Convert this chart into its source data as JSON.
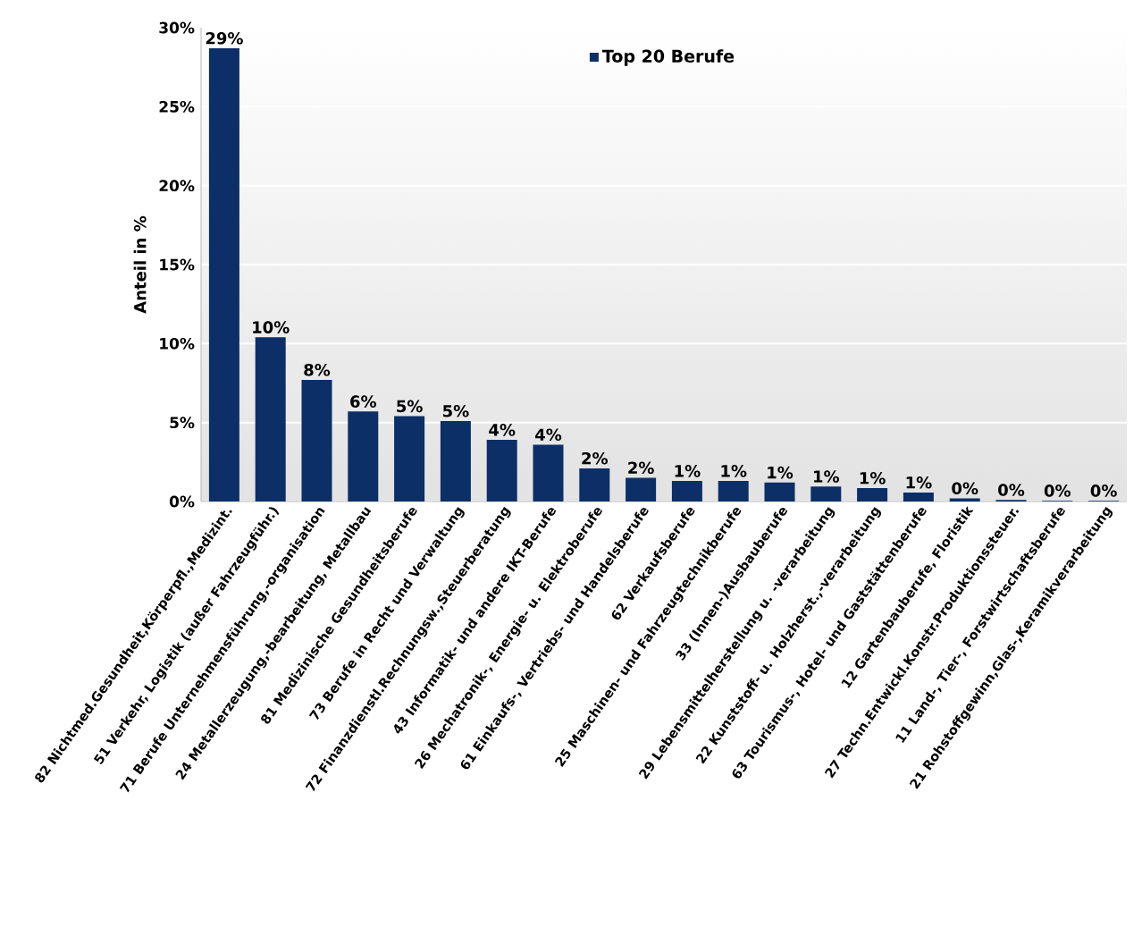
{
  "chart_data": {
    "type": "bar",
    "ylabel": "Anteil in %",
    "categories": [
      "82 Nichtmed.Gesundheit,Körperpfl.,Medizint.",
      "51 Verkehr, Logistik (außer Fahrzeugführ.)",
      "71 Berufe Unternehmensführung,-organisation",
      "24 Metallerzeugung,-bearbeitung, Metallbau",
      "81 Medizinische Gesundheitsberufe",
      "73 Berufe in Recht und Verwaltung",
      "72 Finanzdienstl.Rechnungsw.,Steuerberatung",
      "43 Informatik- und andere IKT-Berufe",
      "26 Mechatronik-, Energie- u. Elektroberufe",
      "61 Einkaufs-, Vertriebs- und Handelsberufe",
      "62 Verkaufsberufe",
      "25 Maschinen- und Fahrzeugtechnikberufe",
      "33 (Innen-)Ausbauberufe",
      "29 Lebensmittelherstellung u. -verarbeitung",
      "22 Kunststoff- u. Holzherst.,-verarbeitung",
      "63 Tourismus-, Hotel- und Gaststättenberufe",
      "12 Gartenbauberufe, Floristik",
      "27 Techn.Entwickl.Konstr.Produktionssteuer.",
      "11 Land-, Tier-, Forstwirtschaftsberufe",
      "21 Rohstoffgewinn,Glas-,Keramikverarbeitung"
    ],
    "series": [
      {
        "name": "Top 20 Berufe",
        "color": "#0b2f66",
        "values": [
          28.7,
          10.4,
          7.7,
          5.7,
          5.4,
          5.1,
          3.9,
          3.6,
          2.1,
          1.5,
          1.3,
          1.3,
          1.2,
          0.95,
          0.85,
          0.57,
          0.2,
          0.1,
          0.05,
          0.05
        ],
        "value_labels": [
          "29%",
          "10%",
          "8%",
          "6%",
          "5%",
          "5%",
          "4%",
          "4%",
          "2%",
          "2%",
          "1%",
          "1%",
          "1%",
          "1%",
          "1%",
          "1%",
          "0%",
          "0%",
          "0%",
          "0%"
        ]
      }
    ],
    "ylim": [
      0,
      30
    ],
    "yticks": [
      {
        "value": 0,
        "label": "0%"
      },
      {
        "value": 5,
        "label": "5%"
      },
      {
        "value": 10,
        "label": "10%"
      },
      {
        "value": 15,
        "label": "15%"
      },
      {
        "value": 20,
        "label": "20%"
      },
      {
        "value": 25,
        "label": "25%"
      },
      {
        "value": 30,
        "label": "30%"
      }
    ],
    "grid": "y",
    "legend": "top"
  }
}
